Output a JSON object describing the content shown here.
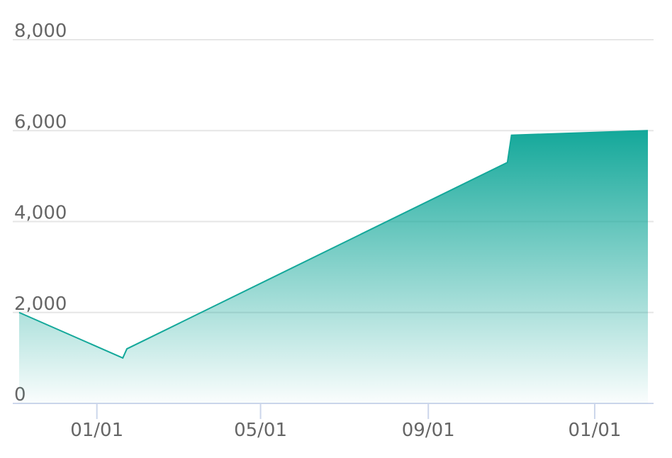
{
  "chart_data": {
    "type": "area",
    "x": [
      -57,
      19,
      22,
      301,
      304,
      404
    ],
    "values": [
      2000,
      1000,
      1200,
      5300,
      5900,
      6000
    ],
    "color": "#14a89a",
    "xlim": [
      -57,
      404
    ],
    "xticks": [
      {
        "value": 0,
        "label": "01/01"
      },
      {
        "value": 120,
        "label": "05/01"
      },
      {
        "value": 243,
        "label": "09/01"
      },
      {
        "value": 365,
        "label": "01/01"
      }
    ],
    "ylim": [
      0,
      8000
    ],
    "yticks": [
      0,
      {
        "value": 2000,
        "label": "2,000"
      },
      {
        "value": 4000,
        "label": "4,000"
      },
      {
        "value": 6000,
        "label": "6,000"
      },
      {
        "value": 8000,
        "label": "8,000"
      }
    ],
    "grid": true
  }
}
